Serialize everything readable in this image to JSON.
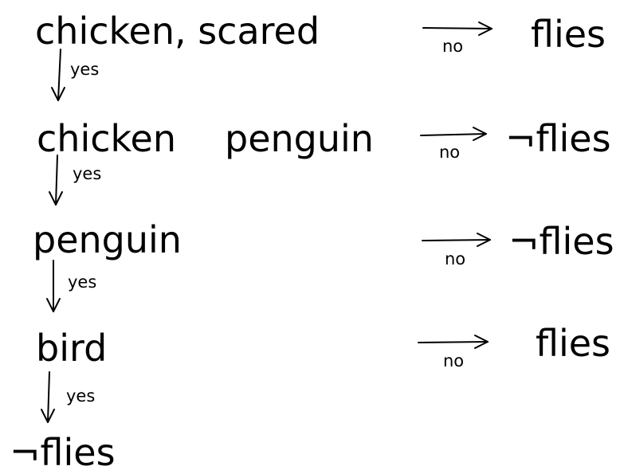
{
  "diagram": {
    "nodes": {
      "chicken_scared": "chicken, scared",
      "chicken": "chicken",
      "penguin_top": "penguin",
      "penguin": "penguin",
      "bird": "bird",
      "not_flies_bottom": "¬flies",
      "flies_1": "flies",
      "not_flies_2": "¬flies",
      "not_flies_3": "¬flies",
      "flies_4": "flies"
    },
    "edges": {
      "yes_1": "yes",
      "yes_2": "yes",
      "yes_3": "yes",
      "yes_4": "yes",
      "no_1": "no",
      "no_2": "no",
      "no_3": "no",
      "no_4": "no"
    }
  }
}
